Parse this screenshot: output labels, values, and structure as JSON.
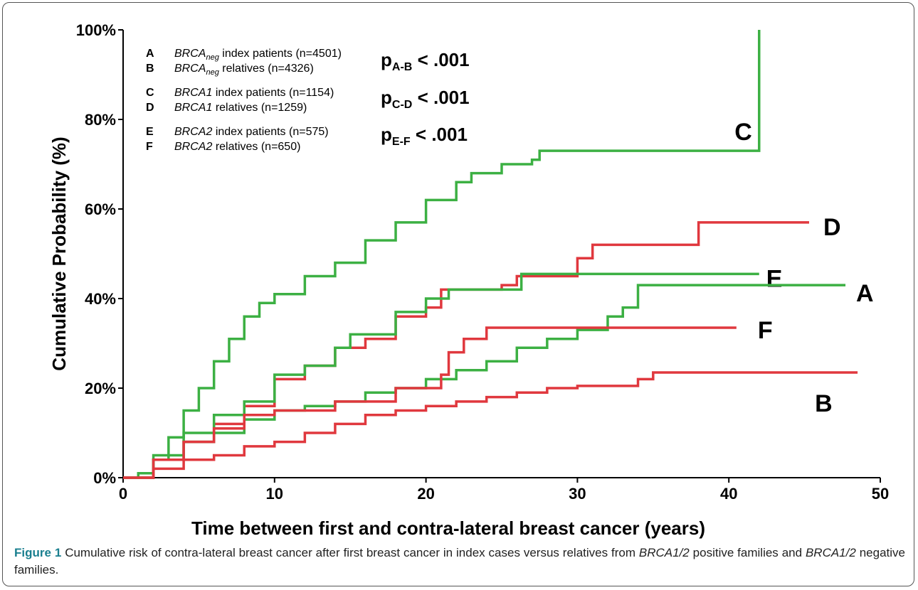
{
  "chart_data": {
    "type": "step",
    "xlabel": "Time between first and contra-lateral breast cancer (years)",
    "ylabel": "Cumulative Probability (%)",
    "xlim": [
      0,
      50
    ],
    "ylim": [
      0,
      100
    ],
    "xticks": [
      0,
      10,
      20,
      30,
      40,
      50
    ],
    "yticks": [
      {
        "value": 0,
        "label": "0%"
      },
      {
        "value": 20,
        "label": "20%"
      },
      {
        "value": 40,
        "label": "40%"
      },
      {
        "value": 60,
        "label": "60%"
      },
      {
        "value": 80,
        "label": "80%"
      },
      {
        "value": 100,
        "label": "100%"
      }
    ],
    "legend": [
      {
        "letter": "A",
        "gene": "BRCA",
        "sub": "neg",
        "text": "index patients (n=4501)"
      },
      {
        "letter": "B",
        "gene": "BRCA",
        "sub": "neg",
        "text": "relatives (n=4326)"
      },
      {
        "letter": "C",
        "gene": "BRCA1",
        "text": "index patients (n=1154)"
      },
      {
        "letter": "D",
        "gene": "BRCA1",
        "text": "relatives (n=1259)"
      },
      {
        "letter": "E",
        "gene": "BRCA2",
        "text": "index patients (n=575)"
      },
      {
        "letter": "F",
        "gene": "BRCA2",
        "text": "relatives (n=650)"
      }
    ],
    "annotations": [
      {
        "p": "p",
        "sub": "A-B",
        "text": "< .001"
      },
      {
        "p": "p",
        "sub": "C-D",
        "text": "< .001"
      },
      {
        "p": "p",
        "sub": "E-F",
        "text": "< .001"
      }
    ],
    "series": [
      {
        "name": "C",
        "color": "#3cb043",
        "x": [
          0,
          1,
          2,
          3,
          4,
          5,
          6,
          7,
          8,
          9,
          10,
          12,
          14,
          16,
          18,
          20,
          22,
          23,
          25,
          27,
          27.5,
          42,
          42
        ],
        "values": [
          0,
          1,
          4,
          9,
          15,
          20,
          26,
          31,
          36,
          39,
          41,
          45,
          48,
          53,
          57,
          62,
          66,
          68,
          70,
          71,
          73,
          73,
          100
        ]
      },
      {
        "name": "D",
        "color": "#e0383e",
        "x": [
          0,
          2,
          4,
          6,
          8,
          10,
          12,
          14,
          16,
          18,
          20,
          21,
          25,
          26,
          30,
          30,
          31,
          38,
          38,
          45.3
        ],
        "values": [
          0,
          4,
          8,
          12,
          16,
          22,
          25,
          29,
          31,
          36,
          38,
          42,
          43,
          45,
          45,
          49,
          52,
          52,
          57,
          57
        ]
      },
      {
        "name": "E",
        "color": "#3cb043",
        "x": [
          0,
          2,
          4,
          6,
          8,
          10,
          12,
          14,
          15,
          18,
          20,
          21.5,
          26,
          26.3,
          42
        ],
        "values": [
          0,
          5,
          10,
          14,
          17,
          23,
          25,
          29,
          32,
          37,
          40,
          42,
          42,
          45.5,
          45.5
        ]
      },
      {
        "name": "A",
        "color": "#3cb043",
        "x": [
          0,
          2,
          4,
          6,
          8,
          10,
          12,
          14,
          16,
          18,
          20,
          22,
          24,
          26,
          28,
          30,
          32,
          33,
          34,
          47.7
        ],
        "values": [
          0,
          4,
          8,
          10,
          13,
          15,
          16,
          17,
          19,
          20,
          22,
          24,
          26,
          29,
          31,
          33,
          36,
          38,
          43,
          43
        ]
      },
      {
        "name": "F",
        "color": "#e0383e",
        "x": [
          0,
          2,
          4,
          6,
          8,
          10,
          14,
          18,
          21,
          21.5,
          22.5,
          24,
          40.5
        ],
        "values": [
          0,
          4,
          8,
          11,
          14,
          15,
          17,
          20,
          23,
          28,
          31,
          33.5,
          33.5
        ]
      },
      {
        "name": "B",
        "color": "#e0383e",
        "x": [
          0,
          2,
          4,
          6,
          8,
          10,
          12,
          14,
          16,
          18,
          20,
          22,
          24,
          26,
          28,
          30,
          33,
          34,
          35,
          48.5
        ],
        "values": [
          0,
          2,
          4,
          5,
          7,
          8,
          10,
          12,
          14,
          15,
          16,
          17,
          18,
          19,
          20,
          20.5,
          20.5,
          22,
          23.5,
          23.5
        ]
      }
    ]
  },
  "caption": {
    "label": "Figure 1",
    "parts": [
      "Cumulative risk of contra-lateral breast cancer after first breast cancer in index cases versus relatives from ",
      "BRCA1/2",
      " positive families and ",
      "BRCA1/2",
      " negative families."
    ]
  }
}
